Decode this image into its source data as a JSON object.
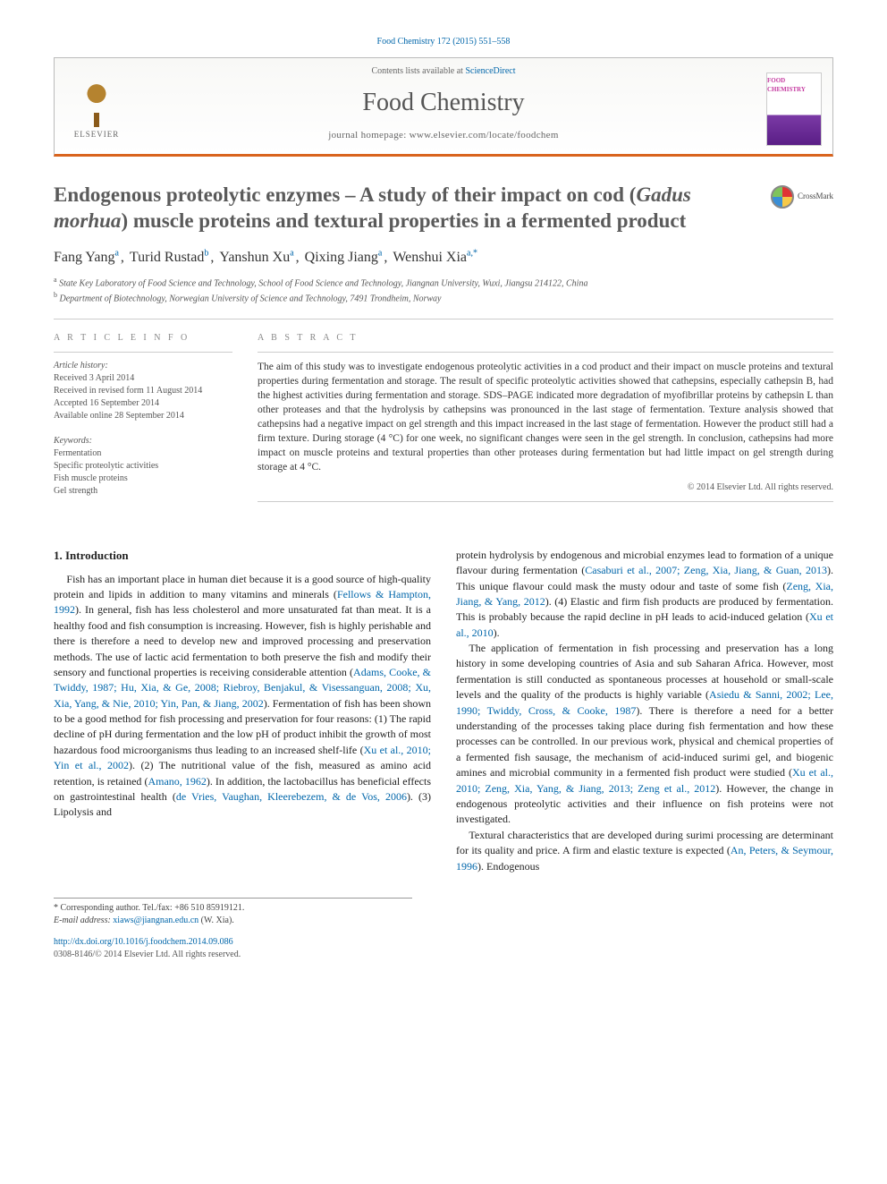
{
  "topCitation": "Food Chemistry 172 (2015) 551–558",
  "header": {
    "contentsPrefix": "Contents lists available at ",
    "contentsLink": "ScienceDirect",
    "journalName": "Food Chemistry",
    "homepagePrefix": "journal homepage: ",
    "homepageUrl": "www.elsevier.com/locate/foodchem",
    "publisher": "ELSEVIER",
    "coverText": "FOOD CHEMISTRY"
  },
  "title": {
    "prefix": "Endogenous proteolytic enzymes – A study of their impact on cod (",
    "italic": "Gadus morhua",
    "suffix": ") muscle proteins and textural properties in a fermented product"
  },
  "crossmark": "CrossMark",
  "authors": [
    {
      "name": "Fang Yang",
      "affil": "a"
    },
    {
      "name": "Turid Rustad",
      "affil": "b"
    },
    {
      "name": "Yanshun Xu",
      "affil": "a"
    },
    {
      "name": "Qixing Jiang",
      "affil": "a"
    },
    {
      "name": "Wenshui Xia",
      "affil": "a,*"
    }
  ],
  "affiliations": [
    {
      "sup": "a",
      "text": "State Key Laboratory of Food Science and Technology, School of Food Science and Technology, Jiangnan University, Wuxi, Jiangsu 214122, China"
    },
    {
      "sup": "b",
      "text": "Department of Biotechnology, Norwegian University of Science and Technology, 7491 Trondheim, Norway"
    }
  ],
  "articleInfo": {
    "heading": "A R T I C L E   I N F O",
    "historyHead": "Article history:",
    "history": [
      "Received 3 April 2014",
      "Received in revised form 11 August 2014",
      "Accepted 16 September 2014",
      "Available online 28 September 2014"
    ],
    "keywordsHead": "Keywords:",
    "keywords": [
      "Fermentation",
      "Specific proteolytic activities",
      "Fish muscle proteins",
      "Gel strength"
    ]
  },
  "abstract": {
    "heading": "A B S T R A C T",
    "text": "The aim of this study was to investigate endogenous proteolytic activities in a cod product and their impact on muscle proteins and textural properties during fermentation and storage. The result of specific proteolytic activities showed that cathepsins, especially cathepsin B, had the highest activities during fermentation and storage. SDS–PAGE indicated more degradation of myofibrillar proteins by cathepsin L than other proteases and that the hydrolysis by cathepsins was pronounced in the last stage of fermentation. Texture analysis showed that cathepsins had a negative impact on gel strength and this impact increased in the last stage of fermentation. However the product still had a firm texture. During storage (4 °C) for one week, no significant changes were seen in the gel strength. In conclusion, cathepsins had more impact on muscle proteins and textural properties than other proteases during fermentation but had little impact on gel strength during storage at 4 °C.",
    "copyright": "© 2014 Elsevier Ltd. All rights reserved."
  },
  "section1": {
    "heading": "1. Introduction",
    "leftParas": [
      "Fish has an important place in human diet because it is a good source of high-quality protein and lipids in addition to many vitamins and minerals (<a class='cite'>Fellows & Hampton, 1992</a>). In general, fish has less cholesterol and more unsaturated fat than meat. It is a healthy food and fish consumption is increasing. However, fish is highly perishable and there is therefore a need to develop new and improved processing and preservation methods. The use of lactic acid fermentation to both preserve the fish and modify their sensory and functional properties is receiving considerable attention (<a class='cite'>Adams, Cooke, & Twiddy, 1987; Hu, Xia, & Ge, 2008; Riebroy, Benjakul, & Visessanguan, 2008; Xu, Xia, Yang, & Nie, 2010; Yin, Pan, & Jiang, 2002</a>). Fermentation of fish has been shown to be a good method for fish processing and preservation for four reasons: (1) The rapid decline of pH during fermentation and the low pH of product inhibit the growth of most hazardous food microorganisms thus leading to an increased shelf-life (<a class='cite'>Xu et al., 2010; Yin et al., 2002</a>). (2) The nutritional value of the fish, measured as amino acid retention, is retained (<a class='cite'>Amano, 1962</a>). In addition, the lactobacillus has beneficial effects on gastrointestinal health (<a class='cite'>de Vries, Vaughan, Kleerebezem, & de Vos, 2006</a>). (3) Lipolysis and"
    ],
    "rightParas": [
      "protein hydrolysis by endogenous and microbial enzymes lead to formation of a unique flavour during fermentation (<a class='cite'>Casaburi et al., 2007; Zeng, Xia, Jiang, & Guan, 2013</a>). This unique flavour could mask the musty odour and taste of some fish (<a class='cite'>Zeng, Xia, Jiang, & Yang, 2012</a>). (4) Elastic and firm fish products are produced by fermentation. This is probably because the rapid decline in pH leads to acid-induced gelation (<a class='cite'>Xu et al., 2010</a>).",
      "The application of fermentation in fish processing and preservation has a long history in some developing countries of Asia and sub Saharan Africa. However, most fermentation is still conducted as spontaneous processes at household or small-scale levels and the quality of the products is highly variable (<a class='cite'>Asiedu & Sanni, 2002; Lee, 1990; Twiddy, Cross, & Cooke, 1987</a>). There is therefore a need for a better understanding of the processes taking place during fish fermentation and how these processes can be controlled. In our previous work, physical and chemical properties of a fermented fish sausage, the mechanism of acid-induced surimi gel, and biogenic amines and microbial community in a fermented fish product were studied (<a class='cite'>Xu et al., 2010; Zeng, Xia, Yang, & Jiang, 2013; Zeng et al., 2012</a>). However, the change in endogenous proteolytic activities and their influence on fish proteins were not investigated.",
      "Textural characteristics that are developed during surimi processing are determinant for its quality and price. A firm and elastic texture is expected (<a class='cite'>An, Peters, & Seymour, 1996</a>). Endogenous"
    ]
  },
  "footnotes": {
    "corr": "* Corresponding author. Tel./fax: +86 510 85919121.",
    "emailLabel": "E-mail address:",
    "email": "xiaws@jiangnan.edu.cn",
    "emailWho": "(W. Xia)."
  },
  "doi": "http://dx.doi.org/10.1016/j.foodchem.2014.09.086",
  "issn": "0308-8146/© 2014 Elsevier Ltd. All rights reserved."
}
